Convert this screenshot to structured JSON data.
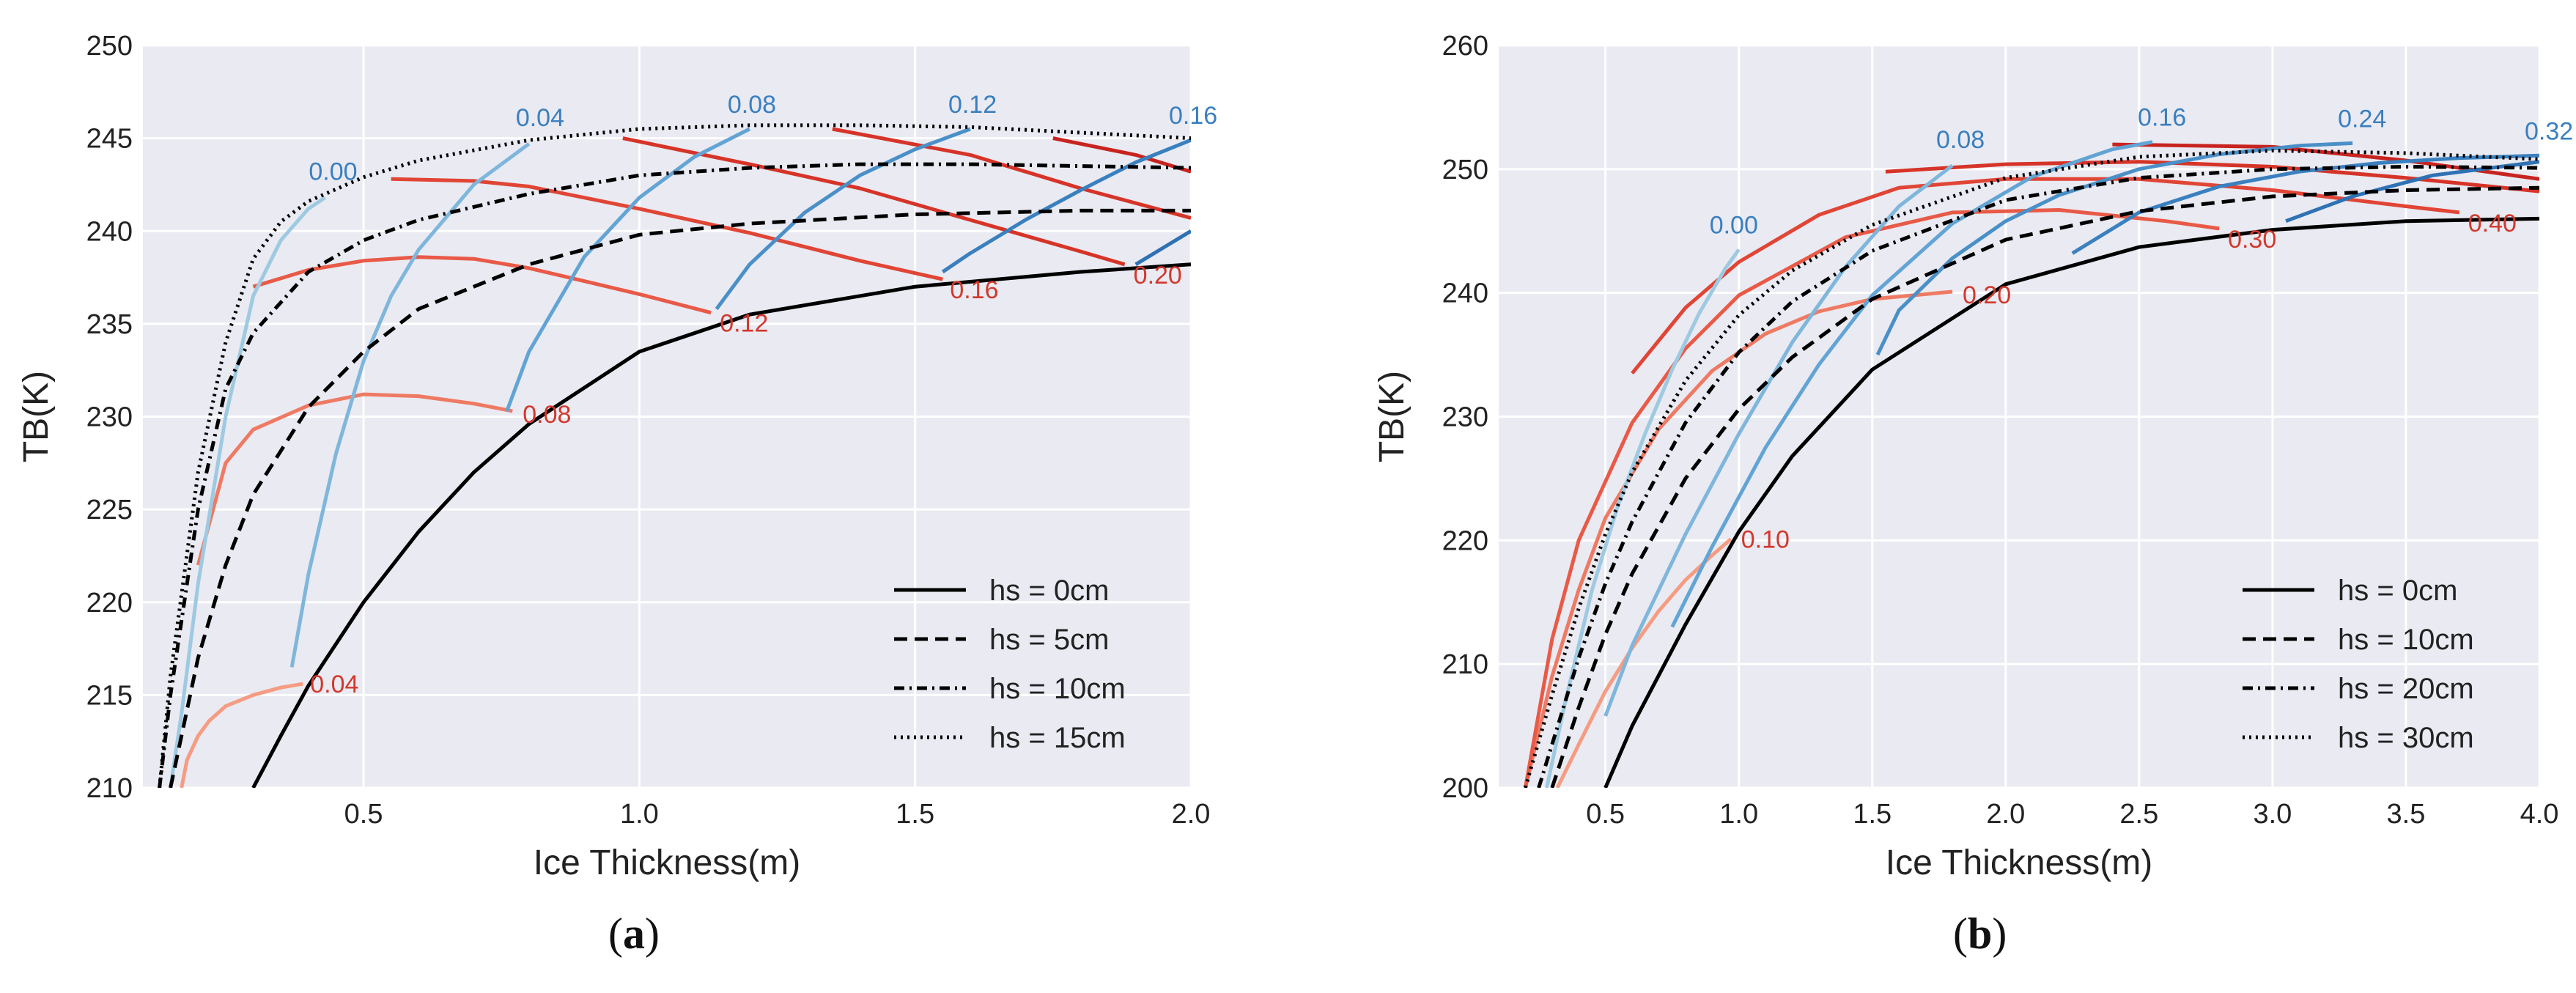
{
  "chart_data": [
    {
      "type": "line",
      "panel_caption": "a",
      "title": "",
      "xlabel": "Ice Thickness(m)",
      "ylabel": "TB(K)",
      "xlim": [
        0.1,
        2.0
      ],
      "ylim": [
        210,
        250
      ],
      "xticks": [
        0.5,
        1.0,
        1.5,
        2.0
      ],
      "xtick_labels": [
        "0.5",
        "1.0",
        "1.5",
        "2.0"
      ],
      "yticks": [
        210,
        215,
        220,
        225,
        230,
        235,
        240,
        245,
        250
      ],
      "ytick_labels": [
        "210",
        "215",
        "220",
        "225",
        "230",
        "235",
        "240",
        "245",
        "250"
      ],
      "grid": true,
      "legend_position": "lower-right",
      "series": [
        {
          "name": "hs = 0cm",
          "style": "solid",
          "color": "#000000",
          "x": [
            0.3,
            0.35,
            0.4,
            0.5,
            0.6,
            0.7,
            0.8,
            1.0,
            1.2,
            1.5,
            1.8,
            2.0
          ],
          "y": [
            210,
            212.8,
            215.5,
            220,
            223.8,
            227,
            229.6,
            233.5,
            235.5,
            237,
            237.8,
            238.2
          ]
        },
        {
          "name": "hs = 5cm",
          "style": "dashed",
          "color": "#000000",
          "x": [
            0.15,
            0.2,
            0.25,
            0.3,
            0.4,
            0.5,
            0.6,
            0.8,
            1.0,
            1.2,
            1.5,
            1.8,
            2.0
          ],
          "y": [
            210,
            217,
            222,
            225.8,
            230.5,
            233.5,
            235.8,
            238.2,
            239.8,
            240.4,
            240.9,
            241.1,
            241.1
          ]
        },
        {
          "name": "hs = 10cm",
          "style": "dashdot",
          "color": "#000000",
          "x": [
            0.13,
            0.15,
            0.2,
            0.25,
            0.3,
            0.4,
            0.5,
            0.6,
            0.8,
            1.0,
            1.2,
            1.4,
            1.6,
            2.0
          ],
          "y": [
            210,
            215,
            225,
            231.5,
            234.5,
            237.8,
            239.5,
            240.6,
            242,
            243,
            243.4,
            243.6,
            243.6,
            243.4
          ]
        },
        {
          "name": "hs = 15cm",
          "style": "dotted",
          "color": "#000000",
          "x": [
            0.13,
            0.15,
            0.2,
            0.25,
            0.3,
            0.35,
            0.4,
            0.5,
            0.6,
            0.8,
            1.0,
            1.2,
            1.4,
            1.6,
            2.0
          ],
          "y": [
            210,
            216,
            227,
            234,
            238.5,
            240.5,
            241.6,
            242.9,
            243.8,
            244.9,
            245.5,
            245.7,
            245.7,
            245.6,
            245
          ]
        }
      ],
      "salinity_lines": [
        {
          "label": "0.04",
          "color": "#f59c82",
          "x": [
            0.17,
            0.18,
            0.2,
            0.22,
            0.25,
            0.3,
            0.35,
            0.39
          ],
          "y": [
            210,
            211.5,
            212.8,
            213.6,
            214.4,
            215,
            215.4,
            215.6
          ]
        },
        {
          "label": "0.08",
          "color": "#ee7a64",
          "x": [
            0.2,
            0.25,
            0.3,
            0.4,
            0.5,
            0.6,
            0.7,
            0.77
          ],
          "y": [
            222,
            227.5,
            229.3,
            230.6,
            231.2,
            231.1,
            230.7,
            230.3
          ]
        },
        {
          "label": "0.12",
          "color": "#e85a47",
          "x": [
            0.3,
            0.4,
            0.5,
            0.6,
            0.7,
            0.8,
            0.9,
            1.0,
            1.13
          ],
          "y": [
            237,
            237.9,
            238.4,
            238.6,
            238.5,
            238,
            237.3,
            236.6,
            235.6
          ]
        },
        {
          "label": "0.16",
          "color": "#e04535",
          "x": [
            0.55,
            0.7,
            0.8,
            0.9,
            1.0,
            1.2,
            1.4,
            1.55
          ],
          "y": [
            242.8,
            242.7,
            242.4,
            241.8,
            241.2,
            239.9,
            238.4,
            237.4
          ]
        },
        {
          "label": "0.20",
          "color": "#d63428",
          "x": [
            0.97,
            1.2,
            1.4,
            1.6,
            1.8,
            1.88
          ],
          "y": [
            245,
            243.6,
            242.3,
            240.6,
            238.9,
            238.2
          ]
        },
        {
          "label": "",
          "color": "#d63428",
          "x": [
            1.35,
            1.6,
            1.8,
            2.0
          ],
          "y": [
            245.5,
            244.1,
            242.3,
            240.7
          ]
        },
        {
          "label": "",
          "color": "#c8241f",
          "x": [
            1.75,
            1.9,
            2.0
          ],
          "y": [
            245,
            244.1,
            243.2
          ]
        }
      ],
      "ice_salinity_lines": [
        {
          "label": "0.00",
          "color": "#9ecae1",
          "x": [
            0.15,
            0.17,
            0.2,
            0.25,
            0.3,
            0.35,
            0.4,
            0.43
          ],
          "y": [
            210,
            214,
            221,
            230,
            236.5,
            239.5,
            241.2,
            241.8
          ]
        },
        {
          "label": "0.04",
          "color": "#7fb6db",
          "x": [
            0.37,
            0.4,
            0.45,
            0.5,
            0.55,
            0.6,
            0.7,
            0.8
          ],
          "y": [
            216.5,
            221.5,
            228,
            233,
            236.5,
            239,
            242.5,
            244.7
          ]
        },
        {
          "label": "0.08",
          "color": "#62a4d4",
          "x": [
            0.76,
            0.8,
            0.9,
            1.0,
            1.1,
            1.2
          ],
          "y": [
            230.3,
            233.5,
            238.6,
            241.8,
            244,
            245.5
          ]
        },
        {
          "label": "0.12",
          "color": "#4a90c8",
          "x": [
            1.14,
            1.2,
            1.3,
            1.4,
            1.5,
            1.6
          ],
          "y": [
            235.8,
            238.2,
            241,
            243,
            244.4,
            245.5
          ]
        },
        {
          "label": "0.16",
          "color": "#3a80bf",
          "x": [
            1.55,
            1.6,
            1.7,
            1.8,
            1.9,
            2.0
          ],
          "y": [
            237.8,
            238.8,
            240.6,
            242.2,
            243.7,
            244.9
          ]
        },
        {
          "label": "",
          "color": "#2e72b4",
          "x": [
            1.9,
            1.95,
            2.0
          ],
          "y": [
            238.2,
            239.1,
            240
          ]
        }
      ]
    },
    {
      "type": "line",
      "panel_caption": "b",
      "title": "",
      "xlabel": "Ice Thickness(m)",
      "ylabel": "TB(K)",
      "xlim": [
        0.1,
        4.0
      ],
      "ylim": [
        200,
        260
      ],
      "xticks": [
        0.5,
        1.0,
        1.5,
        2.0,
        2.5,
        3.0,
        3.5,
        4.0
      ],
      "xtick_labels": [
        "0.5",
        "1.0",
        "1.5",
        "2.0",
        "2.5",
        "3.0",
        "3.5",
        "4.0"
      ],
      "yticks": [
        200,
        210,
        220,
        230,
        240,
        250,
        260
      ],
      "ytick_labels": [
        "200",
        "210",
        "220",
        "230",
        "240",
        "250",
        "260"
      ],
      "grid": true,
      "legend_position": "lower-right",
      "series": [
        {
          "name": "hs = 0cm",
          "style": "solid",
          "color": "#000000",
          "x": [
            0.5,
            0.6,
            0.8,
            1.0,
            1.2,
            1.5,
            2.0,
            2.5,
            3.0,
            3.5,
            4.0
          ],
          "y": [
            200,
            205,
            213.2,
            220.7,
            226.8,
            233.8,
            240.7,
            243.7,
            245.1,
            245.8,
            246
          ]
        },
        {
          "name": "hs = 10cm",
          "style": "dashed",
          "color": "#000000",
          "x": [
            0.3,
            0.4,
            0.5,
            0.6,
            0.8,
            1.0,
            1.2,
            1.5,
            2.0,
            2.5,
            3.0,
            3.5,
            4.0
          ],
          "y": [
            200,
            206.5,
            212.4,
            217.3,
            225,
            230.6,
            234.8,
            239.5,
            244.3,
            246.6,
            247.8,
            248.3,
            248.5
          ]
        },
        {
          "name": "hs = 20cm",
          "style": "dashdot",
          "color": "#000000",
          "x": [
            0.25,
            0.3,
            0.4,
            0.5,
            0.6,
            0.8,
            1.0,
            1.2,
            1.5,
            2.0,
            2.5,
            3.0,
            3.5,
            4.0
          ],
          "y": [
            200,
            203.5,
            210.5,
            216.5,
            221.5,
            229.5,
            235.2,
            239.3,
            243.4,
            247.5,
            249.3,
            250,
            250.2,
            250.1
          ]
        },
        {
          "name": "hs = 30cm",
          "style": "dotted",
          "color": "#000000",
          "x": [
            0.2,
            0.3,
            0.4,
            0.5,
            0.6,
            0.8,
            1.0,
            1.2,
            1.5,
            2.0,
            2.5,
            3.0,
            3.5,
            4.0
          ],
          "y": [
            200,
            207.5,
            214.5,
            220.5,
            225.5,
            232.9,
            238.2,
            241.8,
            245.5,
            249.3,
            251,
            251.5,
            251.3,
            250.8
          ]
        }
      ],
      "salinity_lines": [
        {
          "label": "0.10",
          "color": "#f59c82",
          "x": [
            0.32,
            0.4,
            0.5,
            0.6,
            0.7,
            0.8,
            0.9,
            0.97
          ],
          "y": [
            200,
            203.5,
            207.8,
            211.3,
            214.3,
            216.8,
            218.8,
            220.1
          ]
        },
        {
          "label": "0.20",
          "color": "#ee7a64",
          "x": [
            0.2,
            0.3,
            0.4,
            0.5,
            0.7,
            0.9,
            1.1,
            1.3,
            1.5,
            1.8
          ],
          "y": [
            200,
            209,
            216,
            221.8,
            229,
            233.7,
            236.7,
            238.5,
            239.5,
            240.1
          ]
        },
        {
          "label": "0.30",
          "color": "#e85a47",
          "x": [
            0.2,
            0.3,
            0.4,
            0.6,
            0.8,
            1.0,
            1.4,
            1.8,
            2.2,
            2.6,
            2.8
          ],
          "y": [
            200,
            212,
            220,
            229.5,
            235.5,
            239.8,
            244.5,
            246.5,
            246.7,
            245.8,
            245.2
          ]
        },
        {
          "label": "0.40",
          "color": "#e04535",
          "x": [
            0.6,
            0.8,
            1.0,
            1.3,
            1.6,
            2.0,
            2.5,
            3.0,
            3.5,
            3.7
          ],
          "y": [
            233.5,
            238.8,
            242.5,
            246.3,
            248.5,
            249.2,
            249.2,
            248.3,
            247,
            246.5
          ]
        },
        {
          "label": "",
          "color": "#d63428",
          "x": [
            1.55,
            2.0,
            2.5,
            3.0,
            3.5,
            4.0
          ],
          "y": [
            249.8,
            250.4,
            250.6,
            250.2,
            249.3,
            248.2
          ]
        },
        {
          "label": "",
          "color": "#c8241f",
          "x": [
            2.4,
            3.0,
            3.5,
            4.0
          ],
          "y": [
            252,
            251.8,
            250.7,
            249.2
          ]
        }
      ],
      "ice_salinity_lines": [
        {
          "label": "0.00",
          "color": "#9ecae1",
          "x": [
            0.28,
            0.35,
            0.45,
            0.55,
            0.65,
            0.75,
            0.85,
            0.95,
            1.0
          ],
          "y": [
            200,
            207,
            216,
            223,
            228.7,
            233.8,
            238.3,
            242,
            243.5
          ]
        },
        {
          "label": "0.08",
          "color": "#7fb6db",
          "x": [
            0.5,
            0.6,
            0.8,
            1.0,
            1.2,
            1.4,
            1.6,
            1.8
          ],
          "y": [
            205.8,
            211.5,
            220.5,
            228.6,
            236,
            242.1,
            247,
            250.3
          ]
        },
        {
          "label": "0.16",
          "color": "#62a4d4",
          "x": [
            0.75,
            0.9,
            1.1,
            1.3,
            1.5,
            1.8,
            2.1,
            2.4,
            2.55
          ],
          "y": [
            213,
            219.5,
            227.5,
            234.2,
            239.8,
            245.6,
            249.4,
            251.6,
            252.2
          ]
        },
        {
          "label": "0.24",
          "color": "#4a90c8",
          "x": [
            1.52,
            1.6,
            1.8,
            2.0,
            2.2,
            2.5,
            2.8,
            3.1,
            3.3
          ],
          "y": [
            235,
            238.6,
            242.8,
            245.8,
            247.9,
            250,
            251.2,
            251.9,
            252.1
          ]
        },
        {
          "label": "0.32",
          "color": "#3a80bf",
          "x": [
            2.25,
            2.5,
            2.8,
            3.1,
            3.4,
            3.7,
            4.0
          ],
          "y": [
            243.2,
            246.5,
            248.6,
            249.8,
            250.5,
            250.9,
            251.1
          ]
        },
        {
          "label": "",
          "color": "#2e72b4",
          "x": [
            3.05,
            3.3,
            3.6,
            4.0
          ],
          "y": [
            245.8,
            247.8,
            249.5,
            250.6
          ]
        }
      ]
    }
  ],
  "captions": [
    {
      "open": "(",
      "letter": "a",
      "close": ")"
    },
    {
      "open": "(",
      "letter": "b",
      "close": ")"
    }
  ]
}
